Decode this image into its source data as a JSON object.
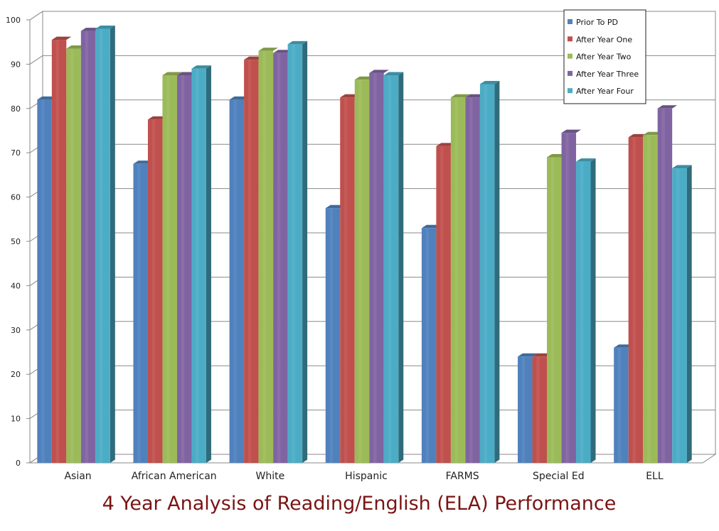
{
  "chart_data": {
    "type": "bar",
    "title": "4 Year Analysis of Reading/English (ELA) Performance",
    "xlabel": "",
    "ylabel": "",
    "ylim": [
      0,
      100
    ],
    "yticks": [
      "0",
      "10",
      "20",
      "30",
      "40",
      "50",
      "60",
      "70",
      "80",
      "90",
      "100"
    ],
    "grid": true,
    "legend_position": "top-right",
    "categories": [
      "Asian",
      "African American",
      "White",
      "Hispanic",
      "FARMS",
      "Special Ed",
      "ELL"
    ],
    "series": [
      {
        "name": "Prior To PD",
        "color": "#4f81bd",
        "values": [
          82,
          67.5,
          82,
          57.5,
          53,
          24,
          26
        ]
      },
      {
        "name": "After Year One",
        "color": "#c0504d",
        "values": [
          95.5,
          77.5,
          91,
          82.5,
          71.5,
          24,
          73.5
        ]
      },
      {
        "name": "After Year Two",
        "color": "#9bbb59",
        "values": [
          93.5,
          87.5,
          93,
          86.5,
          82.5,
          69,
          74
        ]
      },
      {
        "name": "After Year Three",
        "color": "#8064a2",
        "values": [
          97.5,
          87.5,
          92.5,
          88,
          82.5,
          74.5,
          80
        ]
      },
      {
        "name": "After Year Four",
        "color": "#4bacc6",
        "values": [
          98,
          89,
          94.5,
          87.5,
          85.5,
          68,
          66.5
        ]
      }
    ]
  }
}
